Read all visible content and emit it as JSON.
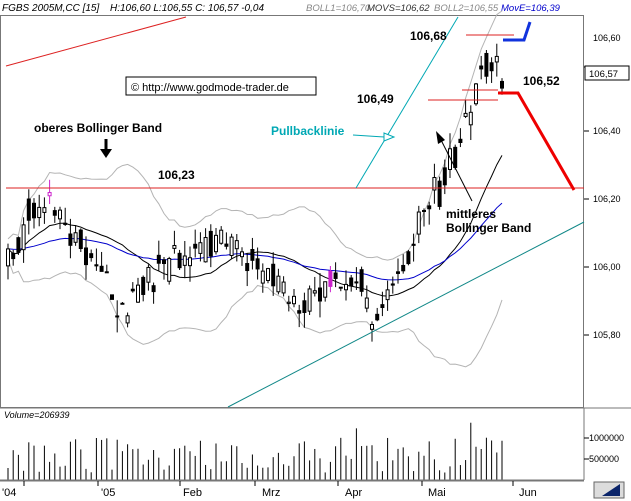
{
  "header": {
    "symbol": "FGBS 2005M,CC [15]",
    "ohlc": "H:106,60  L:106,55  C: 106,57  -0,04",
    "ind1": "BOLL1=106,70",
    "ind2": "MOVS=106,62",
    "ind3": "BOLL2=106,55",
    "ind4": "MovE=106,39"
  },
  "watermark": "© http://www.godmode-trader.de",
  "volume_label": "Volume=206939",
  "last_price": "106,57",
  "annotations": {
    "level_top": "106,68",
    "level_mid": "106,49",
    "level_right": "106,52",
    "level_support": "106,23",
    "upper_band": "oberes Bollinger Band",
    "pullback": "Pullbacklinie",
    "mid_band_1": "mittleres",
    "mid_band_2": "Bollinger Band"
  },
  "colors": {
    "candle": "#000000",
    "band": "#b4b4b4",
    "ma_mid": "#000000",
    "ema": "#0000cc",
    "support": "#dd2222",
    "trend": "#118888",
    "pullback": "#00a8b4",
    "forecast": "#ee0000",
    "forecast_up": "#1133dd",
    "highlight": "#cc22cc"
  },
  "chart_data": {
    "type": "candlestick",
    "series": [
      {
        "name": "FGBS 2005M,CC [15]",
        "kind": "candles"
      },
      {
        "name": "BOLL1",
        "kind": "upper band"
      },
      {
        "name": "MOVS",
        "kind": "middle band"
      },
      {
        "name": "BOLL2",
        "kind": "lower band"
      },
      {
        "name": "MovE",
        "kind": "ema"
      }
    ],
    "last": {
      "high": 106.6,
      "low": 106.55,
      "close": 106.57,
      "change": -0.04
    },
    "x_tick_labels": [
      "'04",
      "'05",
      "Feb",
      "Mrz",
      "Apr",
      "Mai",
      "Jun"
    ],
    "y_tick_labels": [
      "106,60",
      "106,40",
      "106,20",
      "106,00",
      "105,80"
    ],
    "y_ticks": [
      106.6,
      106.4,
      106.2,
      106.0,
      105.8
    ],
    "ylim": [
      105.61,
      106.79
    ],
    "volume_ticks": [
      "1000000",
      "500000"
    ],
    "volume_tick_values": [
      1000000,
      500000
    ],
    "volume_max": 1200000,
    "levels": [
      106.68,
      106.49,
      106.52,
      106.23
    ],
    "days": 96,
    "seed": 5
  }
}
